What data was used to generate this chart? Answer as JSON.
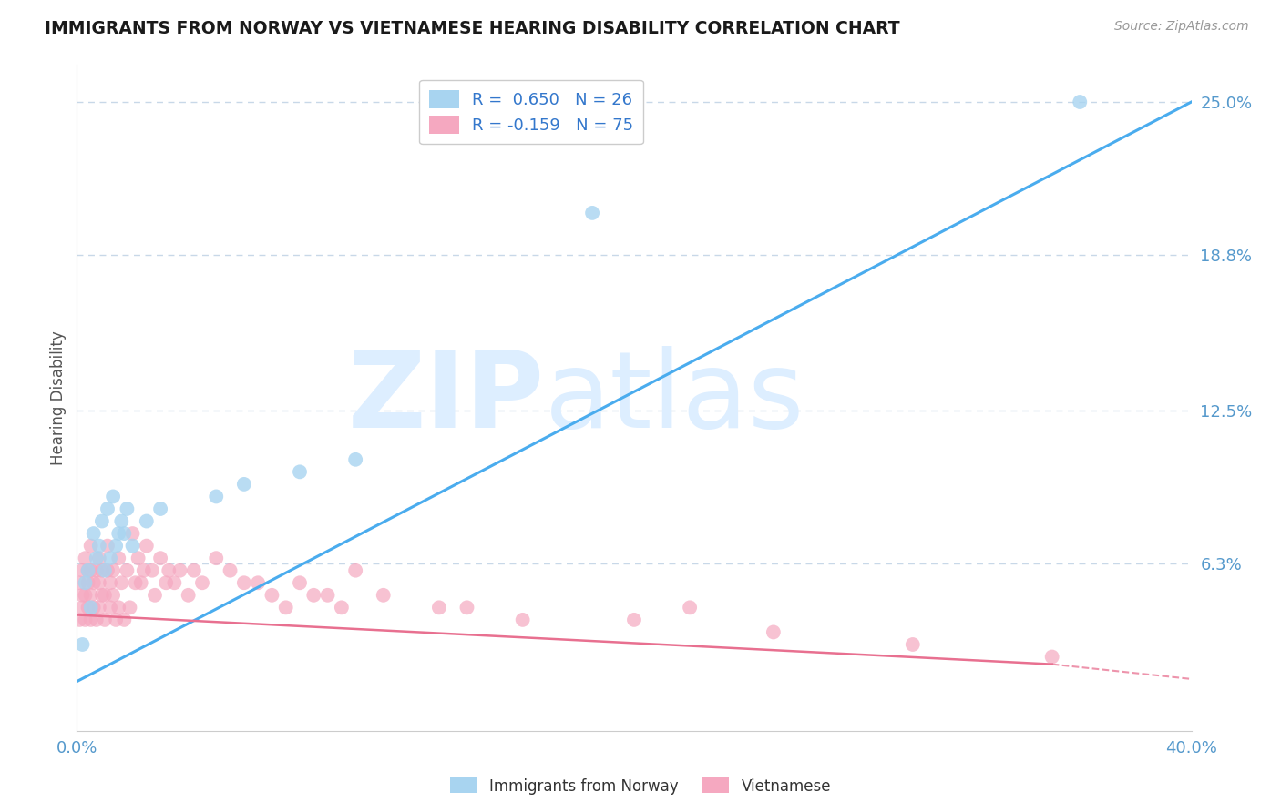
{
  "title": "IMMIGRANTS FROM NORWAY VS VIETNAMESE HEARING DISABILITY CORRELATION CHART",
  "source_text": "Source: ZipAtlas.com",
  "ylabel": "Hearing Disability",
  "xlim": [
    0.0,
    0.4
  ],
  "ylim": [
    -0.005,
    0.265
  ],
  "norway_R": 0.65,
  "norway_N": 26,
  "vietnam_R": -0.159,
  "vietnam_N": 75,
  "norway_color": "#a8d4f0",
  "vietnam_color": "#f5a8c0",
  "norway_line_color": "#4aacee",
  "vietnam_line_color": "#e87090",
  "background_color": "#ffffff",
  "watermark_zip": "ZIP",
  "watermark_atlas": "atlas",
  "watermark_color": "#ddeeff",
  "grid_color": "#c8d8e8",
  "ytick_vals": [
    0.0,
    0.063,
    0.125,
    0.188,
    0.25
  ],
  "ytick_labels": [
    "",
    "6.3%",
    "12.5%",
    "18.8%",
    "25.0%"
  ],
  "xtick_vals": [
    0.0,
    0.4
  ],
  "xtick_labels": [
    "0.0%",
    "40.0%"
  ],
  "tick_color": "#5599cc",
  "norway_x": [
    0.002,
    0.003,
    0.004,
    0.005,
    0.006,
    0.007,
    0.008,
    0.009,
    0.01,
    0.011,
    0.012,
    0.013,
    0.014,
    0.015,
    0.016,
    0.017,
    0.018,
    0.02,
    0.025,
    0.03,
    0.05,
    0.06,
    0.08,
    0.1,
    0.185,
    0.36
  ],
  "norway_y": [
    0.03,
    0.055,
    0.06,
    0.045,
    0.075,
    0.065,
    0.07,
    0.08,
    0.06,
    0.085,
    0.065,
    0.09,
    0.07,
    0.075,
    0.08,
    0.075,
    0.085,
    0.07,
    0.08,
    0.085,
    0.09,
    0.095,
    0.1,
    0.105,
    0.205,
    0.25
  ],
  "vietnam_x": [
    0.001,
    0.001,
    0.002,
    0.002,
    0.002,
    0.003,
    0.003,
    0.003,
    0.004,
    0.004,
    0.004,
    0.005,
    0.005,
    0.005,
    0.005,
    0.006,
    0.006,
    0.007,
    0.007,
    0.008,
    0.008,
    0.008,
    0.009,
    0.009,
    0.01,
    0.01,
    0.011,
    0.011,
    0.012,
    0.012,
    0.013,
    0.013,
    0.014,
    0.015,
    0.015,
    0.016,
    0.017,
    0.018,
    0.019,
    0.02,
    0.021,
    0.022,
    0.023,
    0.024,
    0.025,
    0.027,
    0.028,
    0.03,
    0.032,
    0.033,
    0.035,
    0.037,
    0.04,
    0.042,
    0.045,
    0.05,
    0.055,
    0.06,
    0.065,
    0.07,
    0.075,
    0.08,
    0.085,
    0.09,
    0.095,
    0.1,
    0.11,
    0.13,
    0.14,
    0.16,
    0.2,
    0.22,
    0.25,
    0.3,
    0.35
  ],
  "vietnam_y": [
    0.04,
    0.055,
    0.045,
    0.05,
    0.06,
    0.04,
    0.05,
    0.065,
    0.045,
    0.055,
    0.06,
    0.04,
    0.05,
    0.06,
    0.07,
    0.045,
    0.055,
    0.04,
    0.06,
    0.045,
    0.055,
    0.065,
    0.05,
    0.06,
    0.04,
    0.05,
    0.06,
    0.07,
    0.045,
    0.055,
    0.05,
    0.06,
    0.04,
    0.065,
    0.045,
    0.055,
    0.04,
    0.06,
    0.045,
    0.075,
    0.055,
    0.065,
    0.055,
    0.06,
    0.07,
    0.06,
    0.05,
    0.065,
    0.055,
    0.06,
    0.055,
    0.06,
    0.05,
    0.06,
    0.055,
    0.065,
    0.06,
    0.055,
    0.055,
    0.05,
    0.045,
    0.055,
    0.05,
    0.05,
    0.045,
    0.06,
    0.05,
    0.045,
    0.045,
    0.04,
    0.04,
    0.045,
    0.035,
    0.03,
    0.025
  ],
  "legend_norway_label": "R =  0.650   N = 26",
  "legend_vietnam_label": "R = -0.159   N = 75",
  "bottom_legend_norway": "Immigrants from Norway",
  "bottom_legend_vietnam": "Vietnamese"
}
